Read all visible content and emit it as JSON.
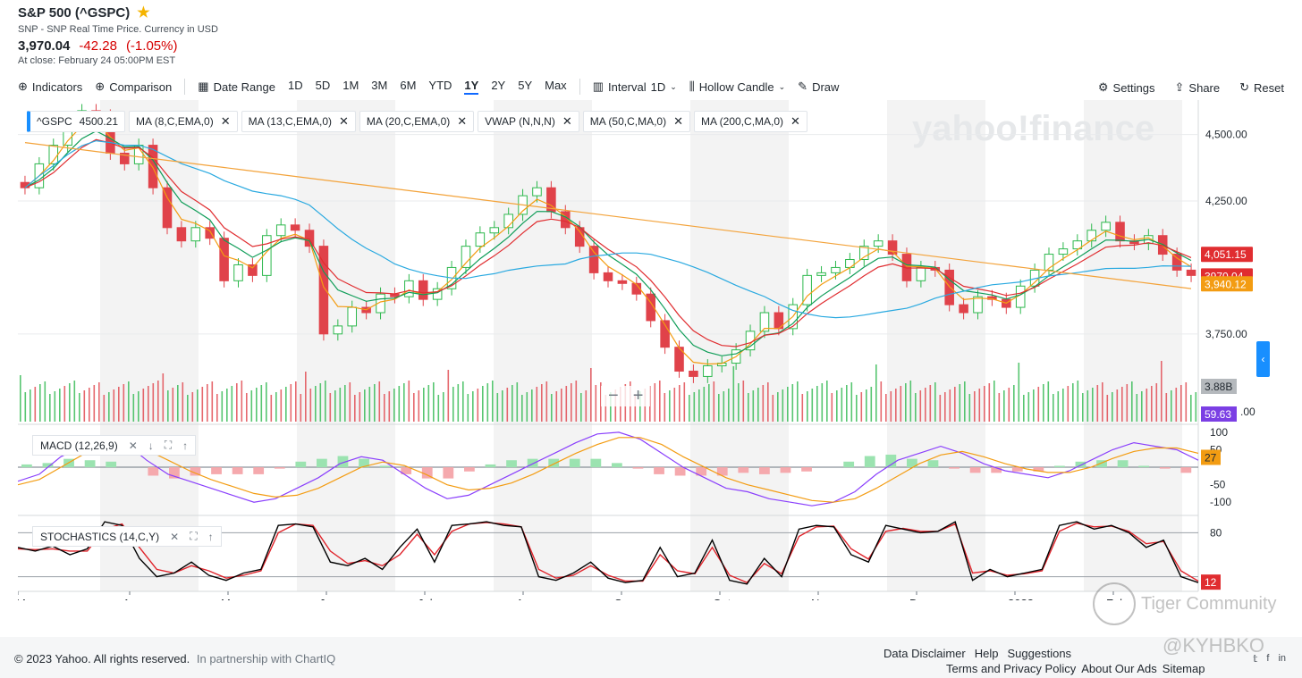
{
  "header": {
    "title": "S&P 500 (^GSPC)",
    "subtitle": "SNP - SNP Real Time Price. Currency in USD",
    "price": "3,970.04",
    "change": "-42.28",
    "change_pct": "(-1.05%)",
    "close_note": "At close: February 24 05:00PM EST"
  },
  "toolbar": {
    "indicators": "Indicators",
    "comparison": "Comparison",
    "date_range": "Date Range",
    "ranges": [
      "1D",
      "5D",
      "1M",
      "3M",
      "6M",
      "YTD",
      "1Y",
      "2Y",
      "5Y",
      "Max"
    ],
    "active_range": "1Y",
    "interval": "Interval",
    "interval_value": "1D",
    "chart_type": "Hollow Candle",
    "draw": "Draw",
    "settings": "Settings",
    "share": "Share",
    "reset": "Reset"
  },
  "studies": [
    {
      "label": "^GSPC",
      "value": "4500.21"
    },
    {
      "label": "MA (8,C,EMA,0)"
    },
    {
      "label": "MA (13,C,EMA,0)"
    },
    {
      "label": "MA (20,C,EMA,0)"
    },
    {
      "label": "VWAP (N,N,N)"
    },
    {
      "label": "MA (50,C,MA,0)"
    },
    {
      "label": "MA (200,C,MA,0)"
    }
  ],
  "watermark": "yahoo!finance",
  "macd_label": "MACD (12,26,9)",
  "stoch_label": "STOCHASTICS (14,C,Y)",
  "zoom": {
    "minus": "−",
    "plus": "+"
  },
  "chart_data": {
    "type": "candlestick",
    "x_labels": [
      "Mar",
      "Apr",
      "May",
      "Jun",
      "Jul",
      "Aug",
      "Sep",
      "Oct",
      "Nov",
      "Dec",
      "2023",
      "Feb"
    ],
    "price_axis": {
      "ticks": [
        4500,
        4250,
        3750
      ],
      "tick_labels": [
        "4,500.00",
        "4,250.00",
        "3,750.00"
      ],
      "ylim": [
        3420,
        4630
      ]
    },
    "closes": [
      4300,
      4390,
      4460,
      4550,
      4590,
      4570,
      4430,
      4390,
      4460,
      4300,
      4150,
      4100,
      4150,
      4110,
      3950,
      4010,
      3970,
      4120,
      4160,
      4140,
      4080,
      3750,
      3780,
      3850,
      3830,
      3900,
      3890,
      3950,
      3880,
      3920,
      4000,
      4080,
      4130,
      4150,
      4200,
      4270,
      4300,
      4210,
      4150,
      4080,
      3980,
      3950,
      3940,
      3900,
      3800,
      3700,
      3610,
      3590,
      3630,
      3640,
      3690,
      3760,
      3830,
      3770,
      3860,
      3970,
      3980,
      4000,
      4030,
      4080,
      4100,
      4050,
      3950,
      4000,
      3990,
      3860,
      3830,
      3890,
      3880,
      3850,
      3930,
      3990,
      4050,
      4070,
      4100,
      4140,
      4170,
      4100,
      4090,
      4120,
      4050,
      3990,
      3970
    ],
    "price_labels": [
      {
        "text": "4,051.15",
        "value": 4051.15,
        "color": "#e02d30"
      },
      {
        "text": "3970.04",
        "value": 3970.04,
        "color": "#e02d30"
      },
      {
        "text": "3,940.12",
        "value": 3940.12,
        "color": "#f39c12"
      }
    ],
    "ma_colors": {
      "ma8": "#f39c12",
      "ma13": "#0f9d58",
      "ma20": "#e02d30",
      "ma50": "#29a9e0",
      "ma200": "#f3a33b"
    },
    "volume": {
      "label": "3.88B",
      "right_label": "59.63",
      "right_label_color": "#7b3fe4",
      "partial_tick": ".00"
    },
    "macd": {
      "ticks": [
        100,
        50,
        -50,
        -100
      ],
      "tick_labels": [
        "100",
        "50",
        "-50",
        "-100"
      ],
      "ylim": [
        -130,
        115
      ],
      "macd_line": [
        -40,
        -20,
        30,
        60,
        80,
        70,
        20,
        -20,
        -40,
        -60,
        -80,
        -100,
        -90,
        -60,
        -30,
        10,
        30,
        20,
        -20,
        -60,
        -90,
        -80,
        -50,
        -20,
        10,
        40,
        70,
        95,
        100,
        80,
        40,
        0,
        -30,
        -60,
        -70,
        -90,
        -100,
        -110,
        -100,
        -70,
        -20,
        20,
        40,
        60,
        40,
        10,
        -10,
        -20,
        -30,
        -10,
        20,
        50,
        70,
        60,
        50,
        20
      ],
      "signal_line": [
        -50,
        -35,
        0,
        35,
        60,
        70,
        50,
        20,
        -10,
        -35,
        -55,
        -75,
        -85,
        -80,
        -60,
        -30,
        0,
        15,
        5,
        -20,
        -50,
        -65,
        -60,
        -45,
        -20,
        10,
        40,
        65,
        85,
        85,
        65,
        30,
        0,
        -30,
        -50,
        -65,
        -80,
        -95,
        -100,
        -90,
        -60,
        -25,
        10,
        35,
        45,
        30,
        10,
        -5,
        -15,
        -15,
        0,
        25,
        45,
        55,
        55,
        40
      ],
      "right_label": "27",
      "right_label_color": "#f39c12"
    },
    "stochastics": {
      "ticks": [
        80
      ],
      "tick_labels": [
        "80"
      ],
      "ylim": [
        0,
        100
      ],
      "k_line": [
        60,
        55,
        62,
        50,
        58,
        95,
        90,
        45,
        20,
        25,
        40,
        22,
        15,
        25,
        30,
        90,
        92,
        88,
        40,
        35,
        45,
        30,
        60,
        85,
        40,
        90,
        92,
        95,
        90,
        88,
        20,
        15,
        25,
        40,
        18,
        12,
        15,
        60,
        20,
        25,
        70,
        15,
        10,
        45,
        20,
        85,
        90,
        88,
        50,
        40,
        90,
        85,
        80,
        82,
        95,
        15,
        30,
        20,
        25,
        30,
        90,
        95,
        85,
        90,
        80,
        60,
        70,
        20,
        12
      ],
      "d_line": [
        58,
        57,
        58,
        55,
        55,
        85,
        92,
        60,
        30,
        25,
        35,
        28,
        18,
        22,
        28,
        80,
        92,
        90,
        55,
        38,
        42,
        35,
        50,
        78,
        50,
        82,
        92,
        94,
        92,
        88,
        30,
        18,
        22,
        35,
        22,
        14,
        14,
        50,
        28,
        24,
        60,
        22,
        12,
        38,
        24,
        75,
        88,
        89,
        58,
        44,
        82,
        86,
        82,
        82,
        92,
        25,
        28,
        22,
        24,
        28,
        82,
        93,
        88,
        89,
        82,
        65,
        68,
        28,
        14
      ],
      "right_label": "12",
      "right_label_color": "#e02d30"
    }
  },
  "footer": {
    "copyright": "© 2023 Yahoo. All rights reserved.",
    "partner": "In partnership with ChartIQ",
    "links_row1": [
      "Data Disclaimer",
      "Help",
      "Suggestions"
    ],
    "links_row2": [
      "Terms and Privacy Policy",
      "About Our Ads",
      "Sitemap"
    ],
    "social": [
      "𝕥",
      "f",
      "in"
    ]
  },
  "overlay_watermarks": {
    "tiger": "Tiger Community",
    "handle": "@KYHBKO"
  }
}
